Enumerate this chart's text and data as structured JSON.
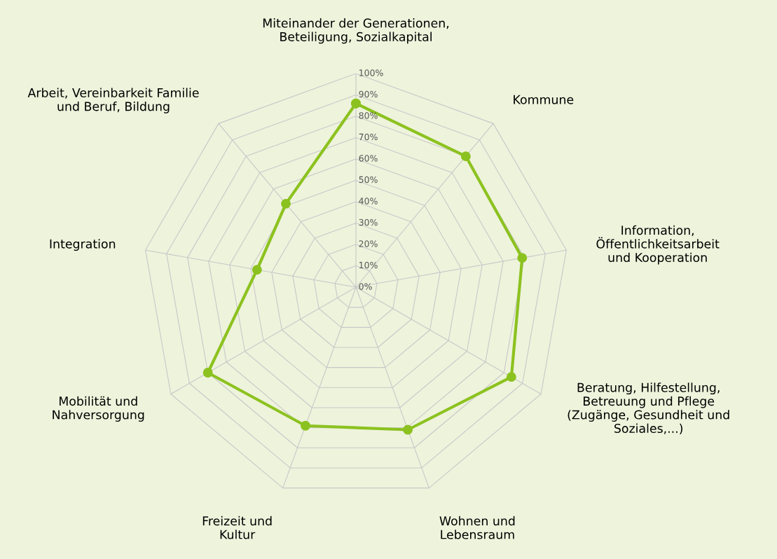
{
  "chart_data": {
    "type": "radar",
    "categories": [
      "Miteinander der Generationen,\nBeteiligung, Sozialkapital",
      "Kommune",
      "Information,\nÖffentlichkeitsarbeit\nund Kooperation",
      "Beratung, Hilfestellung,\nBetreuung und Pflege\n(Zugänge, Gesundheit und\nSoziales,...)",
      "Wohnen und\nLebensraum",
      "Freizeit und\nKultur",
      "Mobilität und\nNahversorgung",
      "Integration",
      "Arbeit, Vereinbarkeit Familie\nund Beruf, Bildung"
    ],
    "series": [
      {
        "color": "#8cc21f",
        "values": [
          86,
          80,
          79,
          84,
          71,
          69,
          80,
          47,
          51
        ]
      }
    ],
    "ylim": [
      0,
      100
    ],
    "yticks": [
      {
        "value": 0,
        "label": "0%"
      },
      {
        "value": 10,
        "label": "10%"
      },
      {
        "value": 20,
        "label": "20%"
      },
      {
        "value": 30,
        "label": "30%"
      },
      {
        "value": 40,
        "label": "40%"
      },
      {
        "value": 50,
        "label": "50%"
      },
      {
        "value": 60,
        "label": "60%"
      },
      {
        "value": 70,
        "label": "70%"
      },
      {
        "value": 80,
        "label": "80%"
      },
      {
        "value": 90,
        "label": "90%"
      },
      {
        "value": 100,
        "label": "100%"
      }
    ],
    "grid": true,
    "marker": "circle",
    "line_style": "solid"
  }
}
